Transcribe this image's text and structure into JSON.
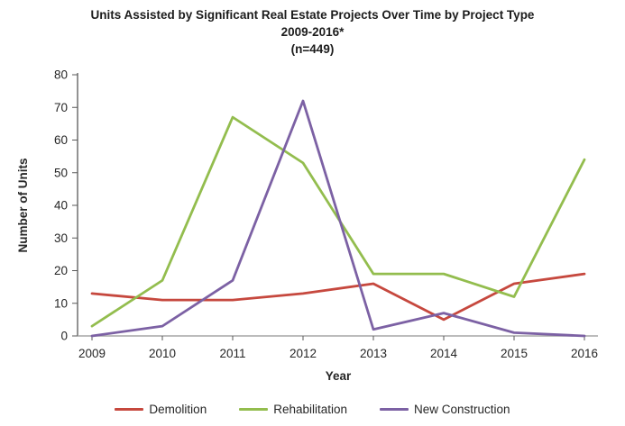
{
  "chart_data": {
    "type": "line",
    "title": "Units Assisted by Significant Real Estate Projects Over Time by Project Type",
    "subtitle": "2009-2016*",
    "sample_note": "(n=449)",
    "xlabel": "Year",
    "ylabel": "Number of Units",
    "categories": [
      "2009",
      "2010",
      "2011",
      "2012",
      "2013",
      "2014",
      "2015",
      "2016"
    ],
    "ylim": [
      0,
      80
    ],
    "ytick_step": 10,
    "grid": false,
    "legend_position": "bottom",
    "axis_style": {
      "y_axis_color": "#595959",
      "x_axis_color": "#A6A6A6",
      "tick_color": "#595959",
      "text_color": "#262626"
    },
    "series": [
      {
        "name": "Demolition",
        "color": "#C6483E",
        "values": [
          13,
          11,
          11,
          13,
          16,
          5,
          16,
          19
        ]
      },
      {
        "name": "Rehabilitation",
        "color": "#93BD4E",
        "values": [
          3,
          17,
          67,
          53,
          19,
          19,
          12,
          54
        ]
      },
      {
        "name": "New Construction",
        "color": "#7C61A4",
        "values": [
          0,
          3,
          17,
          72,
          2,
          7,
          1,
          0
        ]
      }
    ]
  }
}
